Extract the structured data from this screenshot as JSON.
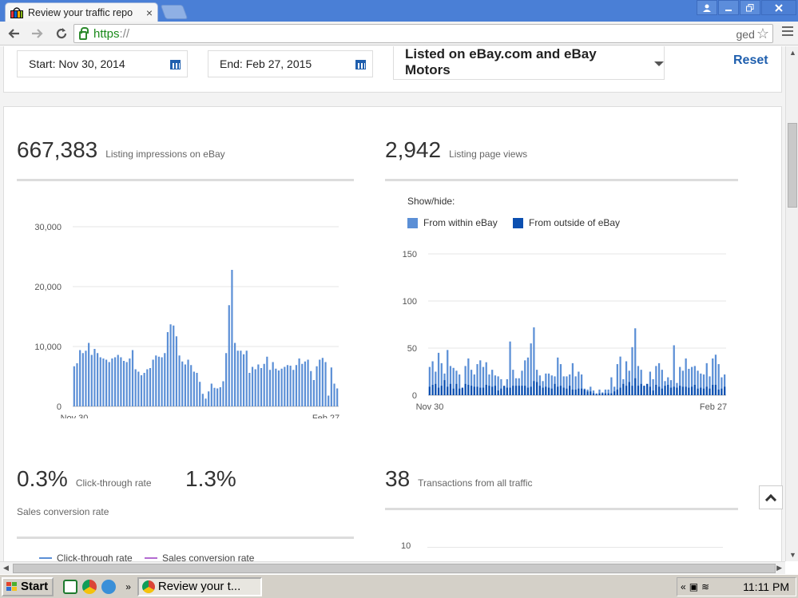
{
  "browser": {
    "tab_title": "Review your traffic repo",
    "tab_close": "×",
    "url_https": "https",
    "url_rest": "://",
    "omni_right_text": "ged"
  },
  "filters": {
    "start_date": "Start: Nov 30, 2014",
    "end_date": "End: Feb 27, 2015",
    "site_select": "Listed on eBay.com and eBay Motors",
    "reset_label": "Reset"
  },
  "metrics": {
    "impressions_value": "667,383",
    "impressions_label": "Listing impressions on eBay",
    "page_views_value": "2,942",
    "page_views_label": "Listing page views",
    "ctr_value": "0.3%",
    "ctr_label": "Click-through rate",
    "conversion_value": "1.3%",
    "conversion_label": "Sales conversion rate",
    "transactions_value": "38",
    "transactions_label": "Transactions from all traffic"
  },
  "page_views_legend": {
    "showhide": "Show/hide:",
    "within": "From within eBay",
    "outside": "From outside of eBay"
  },
  "ctr_legend": {
    "ctr": "Click-through rate",
    "conversion": "Sales conversion rate"
  },
  "taskbar": {
    "start": "Start",
    "task_label": "Review your t...",
    "chev": "»",
    "tray_chev": "«",
    "clock": "11:11 PM"
  },
  "colors": {
    "accent_blue": "#1f5fae",
    "bar_light": "#5b8fd6",
    "bar_dark": "#0b4fb0",
    "ctr_line": "#5b8fd6",
    "conversion_line": "#b36bd1"
  },
  "chart_data": [
    {
      "type": "bar",
      "title": "",
      "ylim": [
        0,
        30000
      ],
      "yticks": [
        "30,000",
        "20,000",
        "10,000",
        "0"
      ],
      "ytick_values": [
        30000,
        20000,
        10000,
        0
      ],
      "xlabels": [
        "Nov 30",
        "Feb 27"
      ],
      "values": [
        6700,
        7200,
        9400,
        8900,
        9300,
        10600,
        8600,
        9600,
        8900,
        8200,
        8000,
        7800,
        7400,
        8000,
        8200,
        8600,
        8200,
        7600,
        7400,
        8000,
        9400,
        6200,
        5800,
        5200,
        5600,
        6200,
        6400,
        7800,
        8500,
        8300,
        8200,
        8900,
        12400,
        13700,
        13500,
        11700,
        8500,
        7500,
        7000,
        7800,
        6900,
        5800,
        5600,
        4100,
        2100,
        1300,
        2500,
        3800,
        3100,
        3000,
        3200,
        4200,
        8900,
        16900,
        22800,
        10600,
        9300,
        9300,
        8700,
        9300,
        5600,
        6600,
        6200,
        7000,
        6400,
        7100,
        8300,
        6100,
        7400,
        6300,
        6000,
        6300,
        6600,
        6900,
        6800,
        6100,
        6900,
        8000,
        7100,
        7500,
        7800,
        5900,
        4400,
        6700,
        7800,
        8100,
        7400,
        1800,
        6500,
        3800,
        3000
      ]
    },
    {
      "type": "bar",
      "title": "",
      "ylim": [
        0,
        150
      ],
      "yticks": [
        "150",
        "100",
        "50",
        "0"
      ],
      "ytick_values": [
        150,
        100,
        50,
        0
      ],
      "xlabels": [
        "Nov 30",
        "Feb 27"
      ],
      "series": [
        {
          "name": "From within eBay",
          "values": [
            30,
            36,
            25,
            45,
            34,
            23,
            48,
            31,
            29,
            26,
            22,
            7,
            31,
            39,
            27,
            22,
            33,
            37,
            30,
            35,
            22,
            27,
            21,
            20,
            17,
            9,
            17,
            57,
            27,
            18,
            18,
            26,
            37,
            40,
            55,
            72,
            27,
            21,
            15,
            23,
            23,
            21,
            20,
            40,
            33,
            20,
            20,
            22,
            34,
            20,
            25,
            22,
            7,
            6,
            9,
            5,
            2,
            6,
            3,
            6,
            6,
            19,
            9,
            33,
            41,
            17,
            36,
            26,
            51,
            71,
            31,
            27,
            10,
            12,
            25,
            17,
            31,
            34,
            27,
            15,
            19,
            16,
            53,
            13,
            30,
            26,
            39,
            28,
            30,
            31,
            26,
            23,
            22,
            34,
            20,
            39,
            43,
            33,
            19,
            22
          ]
        },
        {
          "name": "From outside of eBay",
          "values": [
            9,
            11,
            12,
            8,
            10,
            16,
            9,
            12,
            7,
            12,
            7,
            8,
            12,
            11,
            10,
            9,
            9,
            8,
            8,
            11,
            10,
            9,
            10,
            5,
            7,
            10,
            8,
            8,
            10,
            10,
            10,
            10,
            10,
            8,
            9,
            15,
            14,
            10,
            8,
            9,
            8,
            7,
            12,
            9,
            10,
            8,
            7,
            10,
            6,
            6,
            7,
            7,
            6,
            4,
            4,
            2,
            1,
            2,
            2,
            2,
            2,
            2,
            4,
            6,
            8,
            12,
            10,
            14,
            10,
            18,
            10,
            12,
            10,
            12,
            9,
            5,
            11,
            9,
            7,
            10,
            11,
            8,
            9,
            8,
            10,
            9,
            9,
            8,
            9,
            11,
            7,
            8,
            7,
            9,
            7,
            11,
            11,
            6,
            7,
            9
          ]
        }
      ]
    }
  ],
  "transactions_chart": {
    "ytick": "10"
  }
}
